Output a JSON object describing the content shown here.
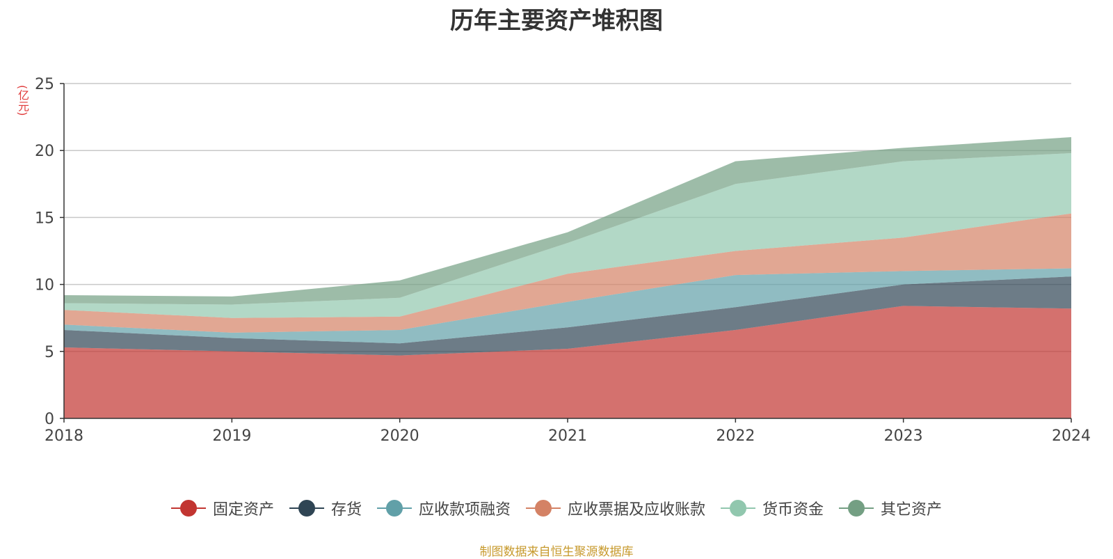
{
  "chart_data": {
    "type": "area",
    "stacked": true,
    "title": "历年主要资产堆积图",
    "ylabel": "(亿元)",
    "xlabel": "",
    "categories": [
      "2018",
      "2019",
      "2020",
      "2021",
      "2022",
      "2023",
      "2024"
    ],
    "ylim": [
      0,
      25
    ],
    "yticks": [
      0,
      5,
      10,
      15,
      20,
      25
    ],
    "grid": true,
    "legend_position": "bottom",
    "series": [
      {
        "name": "固定资产",
        "color": "#c23531",
        "values": [
          5.3,
          5.0,
          4.7,
          5.2,
          6.6,
          8.4,
          8.2
        ]
      },
      {
        "name": "存货",
        "color": "#2f4554",
        "values": [
          1.3,
          1.0,
          0.9,
          1.6,
          1.7,
          1.6,
          2.4
        ]
      },
      {
        "name": "应收款项融资",
        "color": "#61a0a8",
        "values": [
          0.4,
          0.4,
          1.0,
          1.9,
          2.4,
          1.0,
          0.6
        ]
      },
      {
        "name": "应收票据及应收账款",
        "color": "#d48265",
        "values": [
          1.1,
          1.1,
          1.0,
          2.1,
          1.8,
          2.5,
          4.1
        ]
      },
      {
        "name": "货币资金",
        "color": "#91c7ae",
        "values": [
          0.5,
          1.0,
          1.4,
          2.3,
          5.0,
          5.7,
          4.5
        ]
      },
      {
        "name": "其它资产",
        "color": "#749f83",
        "values": [
          0.6,
          0.6,
          1.3,
          0.8,
          1.7,
          1.0,
          1.2
        ]
      }
    ]
  },
  "source_note": "制图数据来自恒生聚源数据库"
}
